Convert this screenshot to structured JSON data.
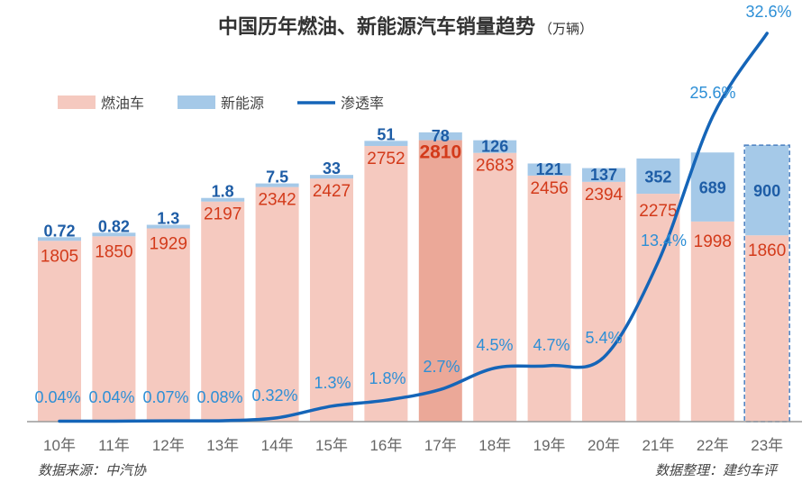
{
  "title": "中国历年燃油、新能源汽车销量趋势",
  "subtitle": "（万辆）",
  "legend": {
    "fuel": "燃油车",
    "nev": "新能源",
    "rate": "渗透率"
  },
  "source_left": "数据来源：中汽协",
  "source_right": "数据整理：建约车评",
  "colors": {
    "fuel_bar": "#f5c9bf",
    "fuel_bar_highlight": "#eba898",
    "nev_bar": "#a5c9e8",
    "line": "#1565b8",
    "fuel_label": "#d33a1a",
    "nev_label": "#1e5da6",
    "rate_label": "#2d8fd6",
    "axis_label": "#666666"
  },
  "chart_data": {
    "type": "bar",
    "stacked": true,
    "categories": [
      "10年",
      "11年",
      "12年",
      "13年",
      "14年",
      "15年",
      "16年",
      "17年",
      "18年",
      "19年",
      "20年",
      "21年",
      "22年",
      "23年"
    ],
    "series": [
      {
        "name": "燃油车",
        "values": [
          1805,
          1850,
          1929,
          2197,
          2342,
          2427,
          2752,
          2810,
          2683,
          2456,
          2394,
          2275,
          1998,
          1860
        ],
        "labels": [
          "1805",
          "1850",
          "1929",
          "2197",
          "2342",
          "2427",
          "2752",
          "2810",
          "2683",
          "2456",
          "2394",
          "2275",
          "1998",
          "1860"
        ]
      },
      {
        "name": "新能源",
        "values": [
          0.72,
          0.82,
          1.3,
          1.8,
          7.5,
          33,
          51,
          78,
          126,
          121,
          137,
          352,
          689,
          900
        ],
        "labels": [
          "0.72",
          "0.82",
          "1.3",
          "1.8",
          "7.5",
          "33",
          "51",
          "78",
          "126",
          "121",
          "137",
          "352",
          "689",
          "900"
        ]
      },
      {
        "name": "渗透率",
        "type": "line",
        "values": [
          0.04,
          0.04,
          0.07,
          0.08,
          0.32,
          1.3,
          1.8,
          2.7,
          4.5,
          4.7,
          5.4,
          13.4,
          25.6,
          32.6
        ],
        "labels": [
          "0.04%",
          "0.04%",
          "0.07%",
          "0.08%",
          "0.32%",
          "1.3%",
          "1.8%",
          "2.7%",
          "4.5%",
          "4.7%",
          "5.4%",
          "13.4%",
          "25.6%",
          "32.6%"
        ]
      }
    ],
    "highlight_category": "17年",
    "estimated_category": "23年",
    "ylim_sales": [
      0,
      2950
    ],
    "ylim_rate": [
      0,
      32.6
    ],
    "grid": false,
    "legend_position": "top-left"
  }
}
